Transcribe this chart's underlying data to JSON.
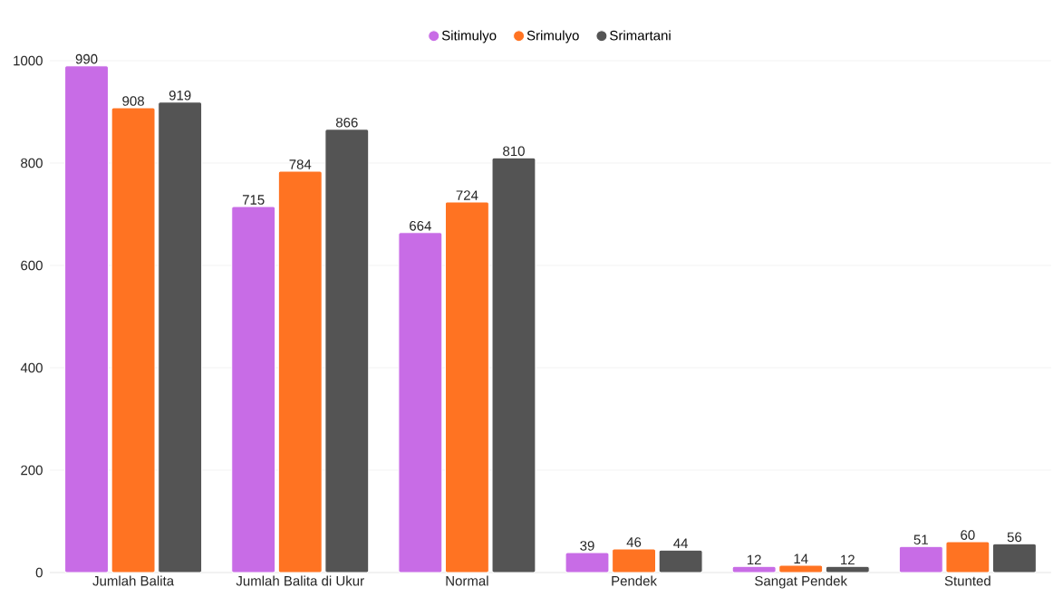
{
  "chart_data": {
    "type": "bar",
    "categories": [
      "Jumlah Balita",
      "Jumlah Balita di Ukur",
      "Normal",
      "Pendek",
      "Sangat Pendek",
      "Stunted"
    ],
    "series": [
      {
        "name": "Sitimulyo",
        "color": "#c86ce6",
        "values": [
          990,
          715,
          664,
          39,
          12,
          51
        ]
      },
      {
        "name": "Srimulyo",
        "color": "#ff7322",
        "values": [
          908,
          784,
          724,
          46,
          14,
          60
        ]
      },
      {
        "name": "Srimartani",
        "color": "#545454",
        "values": [
          919,
          866,
          810,
          44,
          12,
          56
        ]
      }
    ],
    "ylim": [
      0,
      1000
    ],
    "yticks": [
      0,
      200,
      400,
      600,
      800,
      1000
    ],
    "grid": "y",
    "legend": "top",
    "data_labels": true
  }
}
